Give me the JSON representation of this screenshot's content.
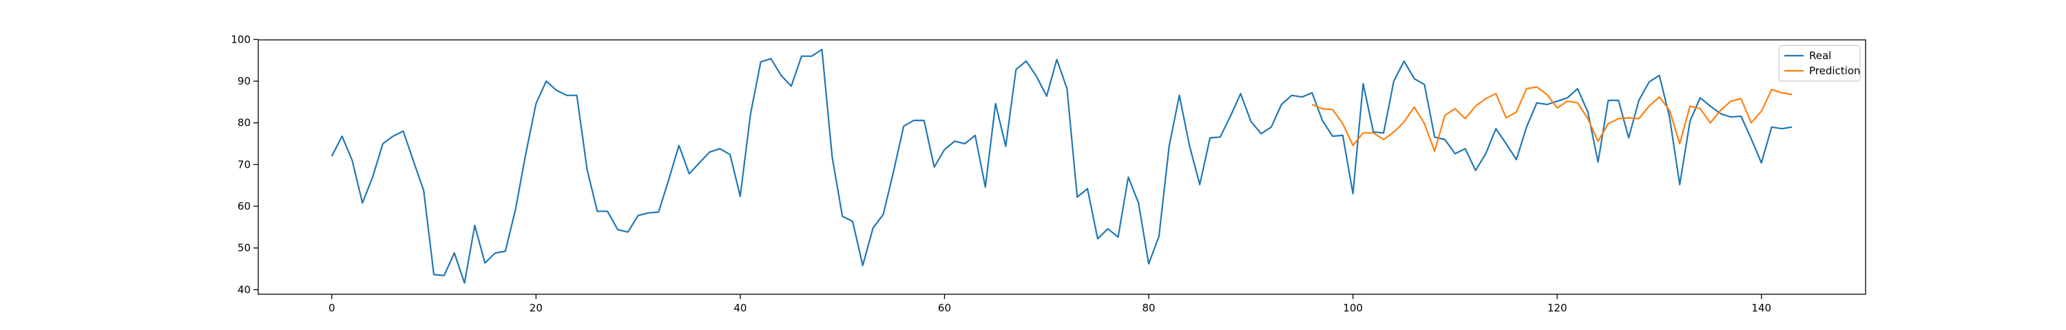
{
  "chart_data": {
    "type": "line",
    "title": "",
    "xlabel": "",
    "ylabel": "",
    "xlim": [
      -7.2,
      150.2
    ],
    "ylim": [
      38.9,
      99.9
    ],
    "xticks": [
      0,
      20,
      40,
      60,
      80,
      100,
      120,
      140
    ],
    "yticks": [
      40,
      50,
      60,
      70,
      80,
      90,
      100
    ],
    "grid": false,
    "legend_position": "top-right",
    "series": [
      {
        "name": "Real",
        "color": "#1f77b4",
        "x_start": 0,
        "values": [
          72.0,
          76.8,
          71.0,
          60.8,
          67.0,
          75.0,
          76.8,
          78.0,
          70.8,
          63.8,
          43.6,
          43.4,
          48.8,
          41.6,
          55.4,
          46.4,
          48.8,
          49.2,
          59.4,
          72.6,
          84.6,
          90.0,
          87.8,
          86.6,
          86.6,
          68.8,
          58.8,
          58.8,
          54.4,
          53.8,
          57.8,
          58.4,
          58.6,
          66.4,
          74.6,
          67.8,
          70.4,
          73.0,
          73.8,
          72.4,
          62.4,
          82.0,
          94.6,
          95.4,
          91.4,
          88.8,
          96.0,
          96.0,
          97.6,
          71.8,
          57.6,
          56.4,
          45.8,
          54.8,
          58.0,
          68.2,
          79.2,
          80.6,
          80.6,
          69.4,
          73.6,
          75.6,
          75.0,
          77.0,
          64.6,
          84.6,
          74.4,
          92.8,
          94.8,
          91.2,
          86.4,
          95.2,
          88.2,
          62.2,
          64.2,
          52.2,
          54.6,
          52.6,
          67.0,
          60.8,
          46.2,
          52.8,
          74.4,
          86.6,
          74.4,
          65.2,
          76.4,
          76.6,
          81.6,
          87.0,
          80.4,
          77.4,
          79.0,
          84.4,
          86.6,
          86.2,
          87.2,
          80.6,
          76.8,
          77.0,
          63.0,
          89.4,
          77.8,
          77.6,
          90.0,
          94.8,
          90.6,
          89.2,
          76.6,
          76.0,
          72.6,
          73.8,
          68.6,
          72.6,
          78.6,
          75.0,
          71.2,
          79.0,
          84.8,
          84.4,
          85.2,
          86.0,
          88.2,
          82.6,
          70.6,
          85.4,
          85.4,
          76.4,
          85.4,
          89.8,
          91.4,
          81.4,
          65.2,
          80.4,
          86.0,
          84.0,
          82.2,
          81.4,
          81.6,
          76.2,
          70.4,
          79.0,
          78.6,
          79.0
        ]
      },
      {
        "name": "Prediction",
        "color": "#ff7f0e",
        "x_start": 96,
        "values": [
          84.4,
          83.4,
          83.2,
          79.8,
          74.6,
          77.6,
          77.6,
          76.0,
          77.8,
          80.2,
          83.8,
          79.8,
          73.2,
          81.8,
          83.4,
          81.0,
          84.0,
          85.8,
          87.0,
          81.2,
          82.6,
          88.2,
          88.6,
          86.8,
          83.6,
          85.2,
          84.8,
          81.0,
          75.6,
          79.8,
          81.0,
          81.2,
          81.0,
          84.0,
          86.2,
          83.0,
          75.0,
          84.0,
          83.4,
          80.0,
          83.0,
          85.2,
          85.8,
          80.0,
          82.8,
          88.0,
          87.2,
          86.8
        ]
      }
    ]
  }
}
